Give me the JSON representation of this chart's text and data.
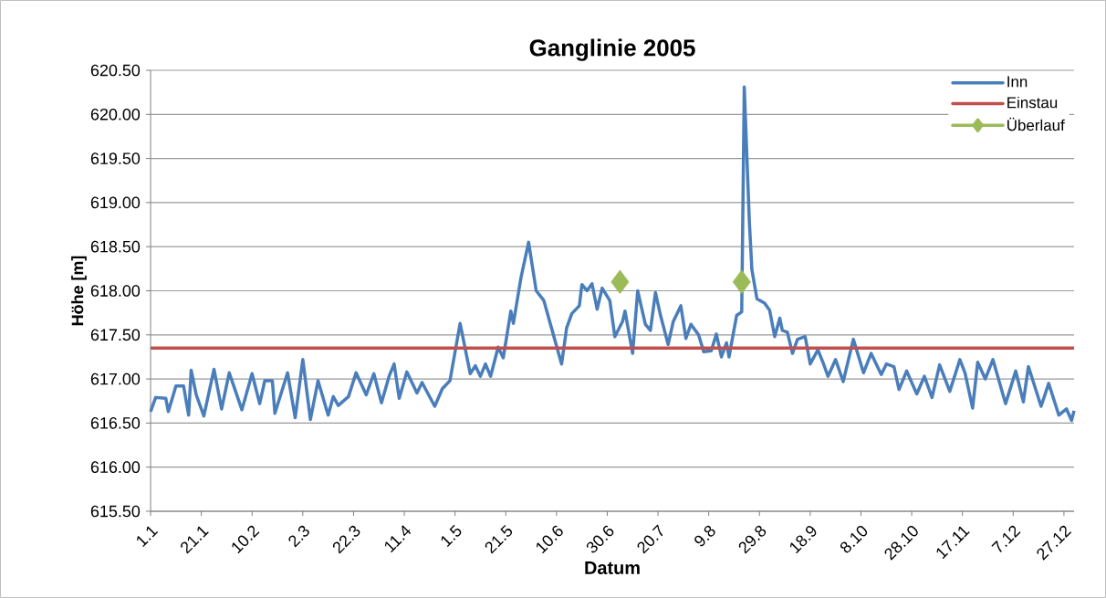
{
  "chart_data": {
    "type": "line",
    "title": "Ganglinie 2005",
    "xlabel": "Datum",
    "ylabel": "Höhe [m]",
    "xlim": [
      "2005-01-01",
      "2005-12-31"
    ],
    "xticks": [
      {
        "value": "2005-01-01",
        "label": "1.1"
      },
      {
        "value": "2005-01-21",
        "label": "21.1"
      },
      {
        "value": "2005-02-10",
        "label": "10.2"
      },
      {
        "value": "2005-03-02",
        "label": "2.3"
      },
      {
        "value": "2005-03-22",
        "label": "22.3"
      },
      {
        "value": "2005-04-11",
        "label": "11.4"
      },
      {
        "value": "2005-05-01",
        "label": "1.5"
      },
      {
        "value": "2005-05-21",
        "label": "21.5"
      },
      {
        "value": "2005-06-10",
        "label": "10.6"
      },
      {
        "value": "2005-06-30",
        "label": "30.6"
      },
      {
        "value": "2005-07-20",
        "label": "20.7"
      },
      {
        "value": "2005-08-09",
        "label": "9.8"
      },
      {
        "value": "2005-08-29",
        "label": "29.8"
      },
      {
        "value": "2005-09-18",
        "label": "18.9"
      },
      {
        "value": "2005-10-08",
        "label": "8.10"
      },
      {
        "value": "2005-10-28",
        "label": "28.10"
      },
      {
        "value": "2005-11-17",
        "label": "17.11"
      },
      {
        "value": "2005-12-07",
        "label": "7.12"
      },
      {
        "value": "2005-12-27",
        "label": "27.12"
      }
    ],
    "ylim": [
      615.5,
      620.5
    ],
    "yticks": [
      {
        "value": 615.5,
        "label": "615.50"
      },
      {
        "value": 616,
        "label": "616.00"
      },
      {
        "value": 616.5,
        "label": "616.50"
      },
      {
        "value": 617,
        "label": "617.00"
      },
      {
        "value": 617.5,
        "label": "617.50"
      },
      {
        "value": 618,
        "label": "618.00"
      },
      {
        "value": 618.5,
        "label": "618.50"
      },
      {
        "value": 619,
        "label": "619.00"
      },
      {
        "value": 619.5,
        "label": "619.50"
      },
      {
        "value": 620,
        "label": "620.00"
      },
      {
        "value": 620.5,
        "label": "620.50"
      }
    ],
    "grid": "y",
    "legend": "top right",
    "series": [
      {
        "name": "Inn",
        "color": "#4a7ebb",
        "x": [
          "2005-01-01",
          "2005-01-03",
          "2005-01-07",
          "2005-01-08",
          "2005-01-11",
          "2005-01-14",
          "2005-01-16",
          "2005-01-17",
          "2005-01-19",
          "2005-01-22",
          "2005-01-26",
          "2005-01-29",
          "2005-02-01",
          "2005-02-06",
          "2005-02-10",
          "2005-02-13",
          "2005-02-15",
          "2005-02-18",
          "2005-02-19",
          "2005-02-24",
          "2005-02-27",
          "2005-03-02",
          "2005-03-05",
          "2005-03-08",
          "2005-03-12",
          "2005-03-14",
          "2005-03-16",
          "2005-03-20",
          "2005-03-23",
          "2005-03-27",
          "2005-03-30",
          "2005-04-02",
          "2005-04-05",
          "2005-04-07",
          "2005-04-09",
          "2005-04-12",
          "2005-04-16",
          "2005-04-18",
          "2005-04-23",
          "2005-04-26",
          "2005-04-29",
          "2005-05-03",
          "2005-05-07",
          "2005-05-09",
          "2005-05-11",
          "2005-05-13",
          "2005-05-15",
          "2005-05-18",
          "2005-05-20",
          "2005-05-23",
          "2005-05-24",
          "2005-05-27",
          "2005-05-30",
          "2005-06-02",
          "2005-06-05",
          "2005-06-08",
          "2005-06-12",
          "2005-06-14",
          "2005-06-16",
          "2005-06-19",
          "2005-06-20",
          "2005-06-22",
          "2005-06-24",
          "2005-06-26",
          "2005-06-28",
          "2005-07-01",
          "2005-07-03",
          "2005-07-06",
          "2005-07-07",
          "2005-07-10",
          "2005-07-12",
          "2005-07-15",
          "2005-07-17",
          "2005-07-19",
          "2005-07-21",
          "2005-07-24",
          "2005-07-26",
          "2005-07-29",
          "2005-07-31",
          "2005-08-02",
          "2005-08-05",
          "2005-08-07",
          "2005-08-10",
          "2005-08-12",
          "2005-08-14",
          "2005-08-16",
          "2005-08-17",
          "2005-08-20",
          "2005-08-22",
          "2005-08-23",
          "2005-08-25",
          "2005-08-26",
          "2005-08-28",
          "2005-08-31",
          "2005-09-02",
          "2005-09-04",
          "2005-09-06",
          "2005-09-07",
          "2005-09-09",
          "2005-09-11",
          "2005-09-13",
          "2005-09-16",
          "2005-09-18",
          "2005-09-21",
          "2005-09-23",
          "2005-09-25",
          "2005-09-28",
          "2005-10-01",
          "2005-10-05",
          "2005-10-09",
          "2005-10-12",
          "2005-10-16",
          "2005-10-18",
          "2005-10-21",
          "2005-10-23",
          "2005-10-26",
          "2005-10-30",
          "2005-11-02",
          "2005-11-05",
          "2005-11-08",
          "2005-11-12",
          "2005-11-16",
          "2005-11-18",
          "2005-11-21",
          "2005-11-23",
          "2005-11-26",
          "2005-11-29",
          "2005-12-04",
          "2005-12-08",
          "2005-12-11",
          "2005-12-13",
          "2005-12-18",
          "2005-12-21",
          "2005-12-25",
          "2005-12-28",
          "2005-12-30",
          "2005-12-31"
        ],
        "values": [
          616.63,
          616.79,
          616.78,
          616.63,
          616.92,
          616.92,
          616.59,
          617.1,
          616.82,
          616.58,
          617.11,
          616.66,
          617.07,
          616.65,
          617.06,
          616.72,
          616.98,
          616.98,
          616.61,
          617.07,
          616.56,
          617.22,
          616.54,
          616.98,
          616.59,
          616.8,
          616.7,
          616.8,
          617.07,
          616.82,
          617.06,
          616.73,
          617.03,
          617.17,
          616.78,
          617.08,
          616.84,
          616.96,
          616.69,
          616.89,
          616.98,
          617.63,
          617.06,
          617.15,
          617.03,
          617.17,
          617.03,
          617.36,
          617.24,
          617.77,
          617.63,
          618.15,
          618.55,
          618.0,
          617.89,
          617.58,
          617.17,
          617.58,
          617.74,
          617.83,
          618.07,
          618.0,
          618.08,
          617.79,
          618.03,
          617.89,
          617.48,
          617.65,
          617.77,
          617.29,
          618.0,
          617.62,
          617.55,
          617.98,
          617.72,
          617.39,
          617.65,
          617.83,
          617.46,
          617.62,
          617.5,
          617.31,
          617.32,
          617.51,
          617.25,
          617.41,
          617.25,
          617.72,
          617.76,
          620.31,
          618.79,
          618.24,
          617.91,
          617.86,
          617.78,
          617.48,
          617.69,
          617.55,
          617.53,
          617.29,
          617.45,
          617.48,
          617.17,
          617.33,
          617.19,
          617.03,
          617.22,
          616.97,
          617.45,
          617.07,
          617.29,
          617.05,
          617.17,
          617.14,
          616.88,
          617.09,
          616.83,
          617.03,
          616.79,
          617.16,
          616.86,
          617.22,
          617.07,
          616.67,
          617.19,
          617.0,
          617.22,
          616.72,
          617.09,
          616.74,
          617.14,
          616.69,
          616.95,
          616.59,
          616.66,
          616.53,
          616.64
        ]
      },
      {
        "name": "Einstau",
        "color": "#c0504d",
        "x": [
          "2005-01-01",
          "2005-12-31"
        ],
        "values": [
          617.35,
          617.35
        ]
      },
      {
        "name": "Überlauf",
        "type": "scatter",
        "color": "#9bbb59",
        "marker": "diamond",
        "x": [
          "2005-07-05",
          "2005-08-22"
        ],
        "values": [
          618.1,
          618.1
        ]
      }
    ]
  }
}
